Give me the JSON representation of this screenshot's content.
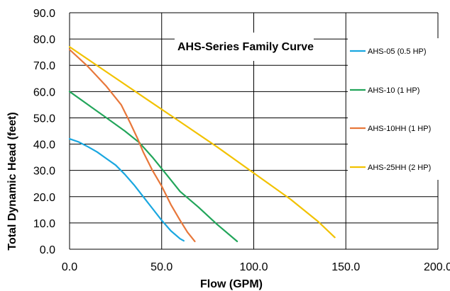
{
  "chart_data": {
    "type": "line",
    "title": "AHS-Series Family Curve",
    "xlabel": "Flow (GPM)",
    "ylabel": "Total Dynamic Head (feet)",
    "xlim": [
      0,
      200
    ],
    "ylim": [
      0,
      90
    ],
    "x_ticks": [
      "0.0",
      "50.0",
      "100.0",
      "150.0",
      "200.0"
    ],
    "y_ticks": [
      "0.0",
      "10.0",
      "20.0",
      "30.0",
      "40.0",
      "50.0",
      "60.0",
      "70.0",
      "80.0",
      "90.0"
    ],
    "grid": true,
    "legend_position": "right",
    "series": [
      {
        "name": "AHS-05 (0.5 HP)",
        "color": "#1aa7e0",
        "points": [
          [
            0,
            42
          ],
          [
            5,
            40.8
          ],
          [
            10,
            39
          ],
          [
            15,
            37
          ],
          [
            20,
            34.5
          ],
          [
            25,
            32
          ],
          [
            30,
            28.5
          ],
          [
            35,
            24.5
          ],
          [
            40,
            20
          ],
          [
            45,
            15.5
          ],
          [
            50,
            11
          ],
          [
            55,
            7
          ],
          [
            60,
            4
          ],
          [
            62,
            3.2
          ]
        ]
      },
      {
        "name": "AHS-10 (1 HP)",
        "color": "#22a55a",
        "points": [
          [
            0,
            60
          ],
          [
            10,
            55
          ],
          [
            20,
            50
          ],
          [
            30,
            45
          ],
          [
            38,
            40.5
          ],
          [
            45,
            35
          ],
          [
            52,
            29
          ],
          [
            60,
            22
          ],
          [
            70,
            16
          ],
          [
            80,
            9.5
          ],
          [
            91,
            3
          ]
        ]
      },
      {
        "name": "AHS-10HH (1 HP)",
        "color": "#e8773a",
        "points": [
          [
            0,
            76
          ],
          [
            10,
            69.5
          ],
          [
            20,
            62
          ],
          [
            28,
            55
          ],
          [
            33,
            48
          ],
          [
            37,
            42
          ],
          [
            40,
            37
          ],
          [
            45,
            30
          ],
          [
            50,
            24
          ],
          [
            55,
            17
          ],
          [
            60,
            11
          ],
          [
            64,
            6.5
          ],
          [
            68,
            3
          ]
        ]
      },
      {
        "name": "AHS-25HH (2 HP)",
        "color": "#f2c200",
        "points": [
          [
            0,
            77
          ],
          [
            20,
            67.5
          ],
          [
            40,
            58
          ],
          [
            60,
            48.5
          ],
          [
            80,
            39
          ],
          [
            100,
            29
          ],
          [
            120,
            19
          ],
          [
            135,
            10.5
          ],
          [
            144,
            4.5
          ]
        ]
      }
    ]
  }
}
